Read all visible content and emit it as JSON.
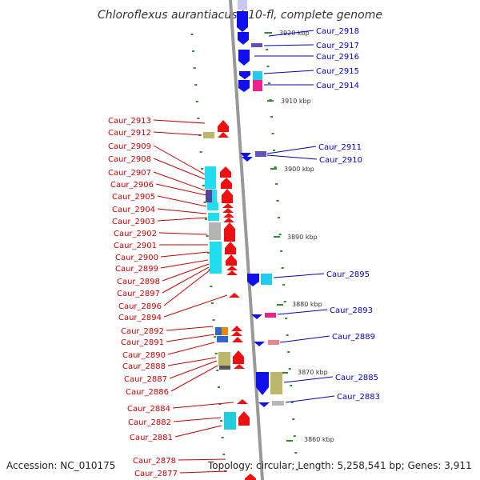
{
  "title": "Chloroflexus aurantiacus J-10-fl, complete genome",
  "accession": "Accession: NC_010175",
  "summary": "Topology: circular; Length: 5,258,541 bp; Genes: 3,911",
  "colors": {
    "right_label": "#0000cc",
    "left_label": "#cc0000",
    "right_gene": "#1010ee",
    "left_gene": "#ee1010",
    "backbone": "#999999",
    "tick": "#2e8b2e"
  },
  "kbp_marks": [
    "3920 kbp",
    "3910 kbp",
    "3900 kbp",
    "3890 kbp",
    "3880 kbp",
    "3870 kbp",
    "3860 kbp"
  ],
  "right_labels": [
    "Caur_2918",
    "Caur_2917",
    "Caur_2916",
    "Caur_2915",
    "Caur_2914",
    "Caur_2911",
    "Caur_2910",
    "Caur_2895",
    "Caur_2893",
    "Caur_2889",
    "Caur_2885",
    "Caur_2883"
  ],
  "left_labels": [
    "Caur_2913",
    "Caur_2912",
    "Caur_2909",
    "Caur_2908",
    "Caur_2907",
    "Caur_2906",
    "Caur_2905",
    "Caur_2904",
    "Caur_2903",
    "Caur_2902",
    "Caur_2901",
    "Caur_2900",
    "Caur_2899",
    "Caur_2898",
    "Caur_2897",
    "Caur_2896",
    "Caur_2894",
    "Caur_2892",
    "Caur_2891",
    "Caur_2890",
    "Caur_2888",
    "Caur_2887",
    "Caur_2886",
    "Caur_2884",
    "Caur_2882",
    "Caur_2881",
    "Caur_2878",
    "Caur_2877"
  ]
}
